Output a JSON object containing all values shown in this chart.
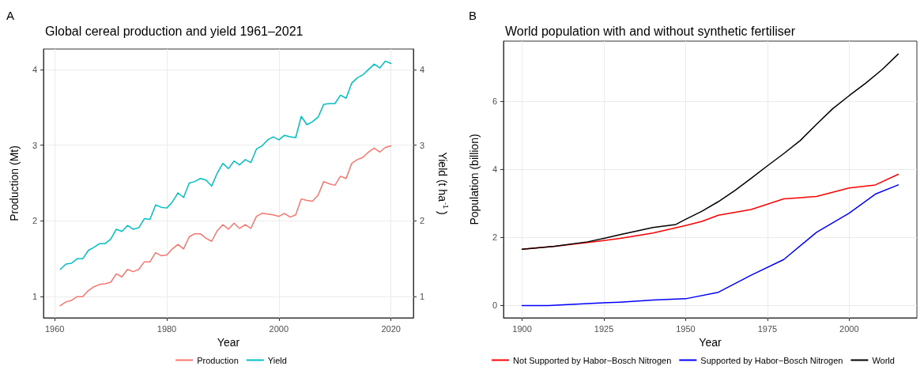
{
  "chart_data": [
    {
      "type": "line",
      "title": "Global cereal production and yield 1961–2021",
      "xlabel": "Year",
      "ylabel": "Production (Mt)",
      "y2label": "Yield (t ha$^{-1}$)",
      "annotations": [
        "A"
      ],
      "x": [
        1961,
        1962,
        1963,
        1964,
        1965,
        1966,
        1967,
        1968,
        1969,
        1970,
        1971,
        1972,
        1973,
        1974,
        1975,
        1976,
        1977,
        1978,
        1979,
        1980,
        1981,
        1982,
        1983,
        1984,
        1985,
        1986,
        1987,
        1988,
        1989,
        1990,
        1991,
        1992,
        1993,
        1994,
        1995,
        1996,
        1997,
        1998,
        1999,
        2000,
        2001,
        2002,
        2003,
        2004,
        2005,
        2006,
        2007,
        2008,
        2009,
        2010,
        2011,
        2012,
        2013,
        2014,
        2015,
        2016,
        2017,
        2018,
        2019,
        2020
      ],
      "series": [
        {
          "name": "Production",
          "color": "#f8766d",
          "values": [
            0.88,
            0.93,
            0.95,
            1.0,
            1.0,
            1.08,
            1.13,
            1.16,
            1.17,
            1.19,
            1.3,
            1.26,
            1.36,
            1.33,
            1.36,
            1.46,
            1.46,
            1.58,
            1.54,
            1.55,
            1.63,
            1.69,
            1.63,
            1.79,
            1.83,
            1.83,
            1.77,
            1.73,
            1.87,
            1.95,
            1.89,
            1.97,
            1.9,
            1.95,
            1.9,
            2.06,
            2.1,
            2.09,
            2.08,
            2.06,
            2.1,
            2.05,
            2.08,
            2.29,
            2.27,
            2.26,
            2.34,
            2.52,
            2.49,
            2.47,
            2.59,
            2.56,
            2.76,
            2.81,
            2.84,
            2.91,
            2.96,
            2.91,
            2.97,
            2.99
          ]
        },
        {
          "name": "Yield",
          "color": "#00bfc4",
          "axis": "y2",
          "values": [
            1.36,
            1.43,
            1.44,
            1.5,
            1.5,
            1.61,
            1.65,
            1.7,
            1.7,
            1.76,
            1.89,
            1.86,
            1.94,
            1.89,
            1.91,
            2.03,
            2.02,
            2.21,
            2.18,
            2.17,
            2.25,
            2.37,
            2.31,
            2.5,
            2.52,
            2.56,
            2.54,
            2.46,
            2.63,
            2.76,
            2.69,
            2.79,
            2.74,
            2.81,
            2.77,
            2.95,
            2.99,
            3.07,
            3.11,
            3.07,
            3.13,
            3.11,
            3.1,
            3.38,
            3.27,
            3.31,
            3.37,
            3.54,
            3.55,
            3.55,
            3.66,
            3.62,
            3.82,
            3.89,
            3.93,
            4.0,
            4.07,
            4.02,
            4.11,
            4.08
          ]
        }
      ],
      "xlim": [
        1958,
        2024
      ],
      "xticks": [
        1960,
        1980,
        2000,
        2020
      ],
      "ylim": [
        0.72,
        4.27
      ],
      "yticks": [
        1,
        2,
        3,
        4
      ],
      "y2lim": [
        0.72,
        4.27
      ],
      "y2ticks": [
        1,
        2,
        3,
        4
      ],
      "grid": true,
      "legend": "bottom",
      "marker": "none",
      "line_style": "solid"
    },
    {
      "type": "line",
      "title": "World population with and without synthetic fertiliser",
      "xlabel": "Year",
      "ylabel": "Population (billion)",
      "annotations": [
        "B"
      ],
      "series": [
        {
          "name": "Not Supported by Habor−Bosch Nitrogen",
          "color": "#ff0000",
          "x": [
            1900,
            1910,
            1920,
            1930,
            1940,
            1950,
            1955,
            1960,
            1970,
            1980,
            1990,
            2000,
            2008,
            2015
          ],
          "values": [
            1.65,
            1.74,
            1.85,
            1.97,
            2.13,
            2.35,
            2.47,
            2.65,
            2.82,
            3.13,
            3.2,
            3.45,
            3.54,
            3.85
          ]
        },
        {
          "name": "Supported by Habor−Bosch Nitrogen",
          "color": "#0000ff",
          "x": [
            1900,
            1908,
            1920,
            1930,
            1940,
            1950,
            1960,
            1970,
            1980,
            1990,
            2000,
            2008,
            2015
          ],
          "values": [
            0,
            0,
            0.06,
            0.1,
            0.16,
            0.2,
            0.39,
            0.89,
            1.35,
            2.15,
            2.71,
            3.27,
            3.54
          ]
        },
        {
          "name": "World",
          "color": "#000000",
          "x": [
            1900,
            1910,
            1920,
            1925,
            1930,
            1940,
            1947,
            1950,
            1955,
            1960,
            1965,
            1970,
            1975,
            1980,
            1985,
            1990,
            1995,
            2000,
            2005,
            2010,
            2015
          ],
          "values": [
            1.65,
            1.74,
            1.87,
            1.97,
            2.08,
            2.29,
            2.38,
            2.53,
            2.77,
            3.05,
            3.37,
            3.73,
            4.1,
            4.46,
            4.84,
            5.32,
            5.78,
            6.16,
            6.52,
            6.92,
            7.38
          ]
        }
      ],
      "xlim": [
        1894.3,
        2020.7
      ],
      "xticks": [
        1900,
        1925,
        1950,
        1975,
        2000
      ],
      "ylim": [
        -0.36,
        7.76
      ],
      "yticks": [
        0,
        2,
        4,
        6
      ],
      "grid": true,
      "legend": "bottom",
      "marker": "none",
      "line_style": "solid"
    }
  ]
}
